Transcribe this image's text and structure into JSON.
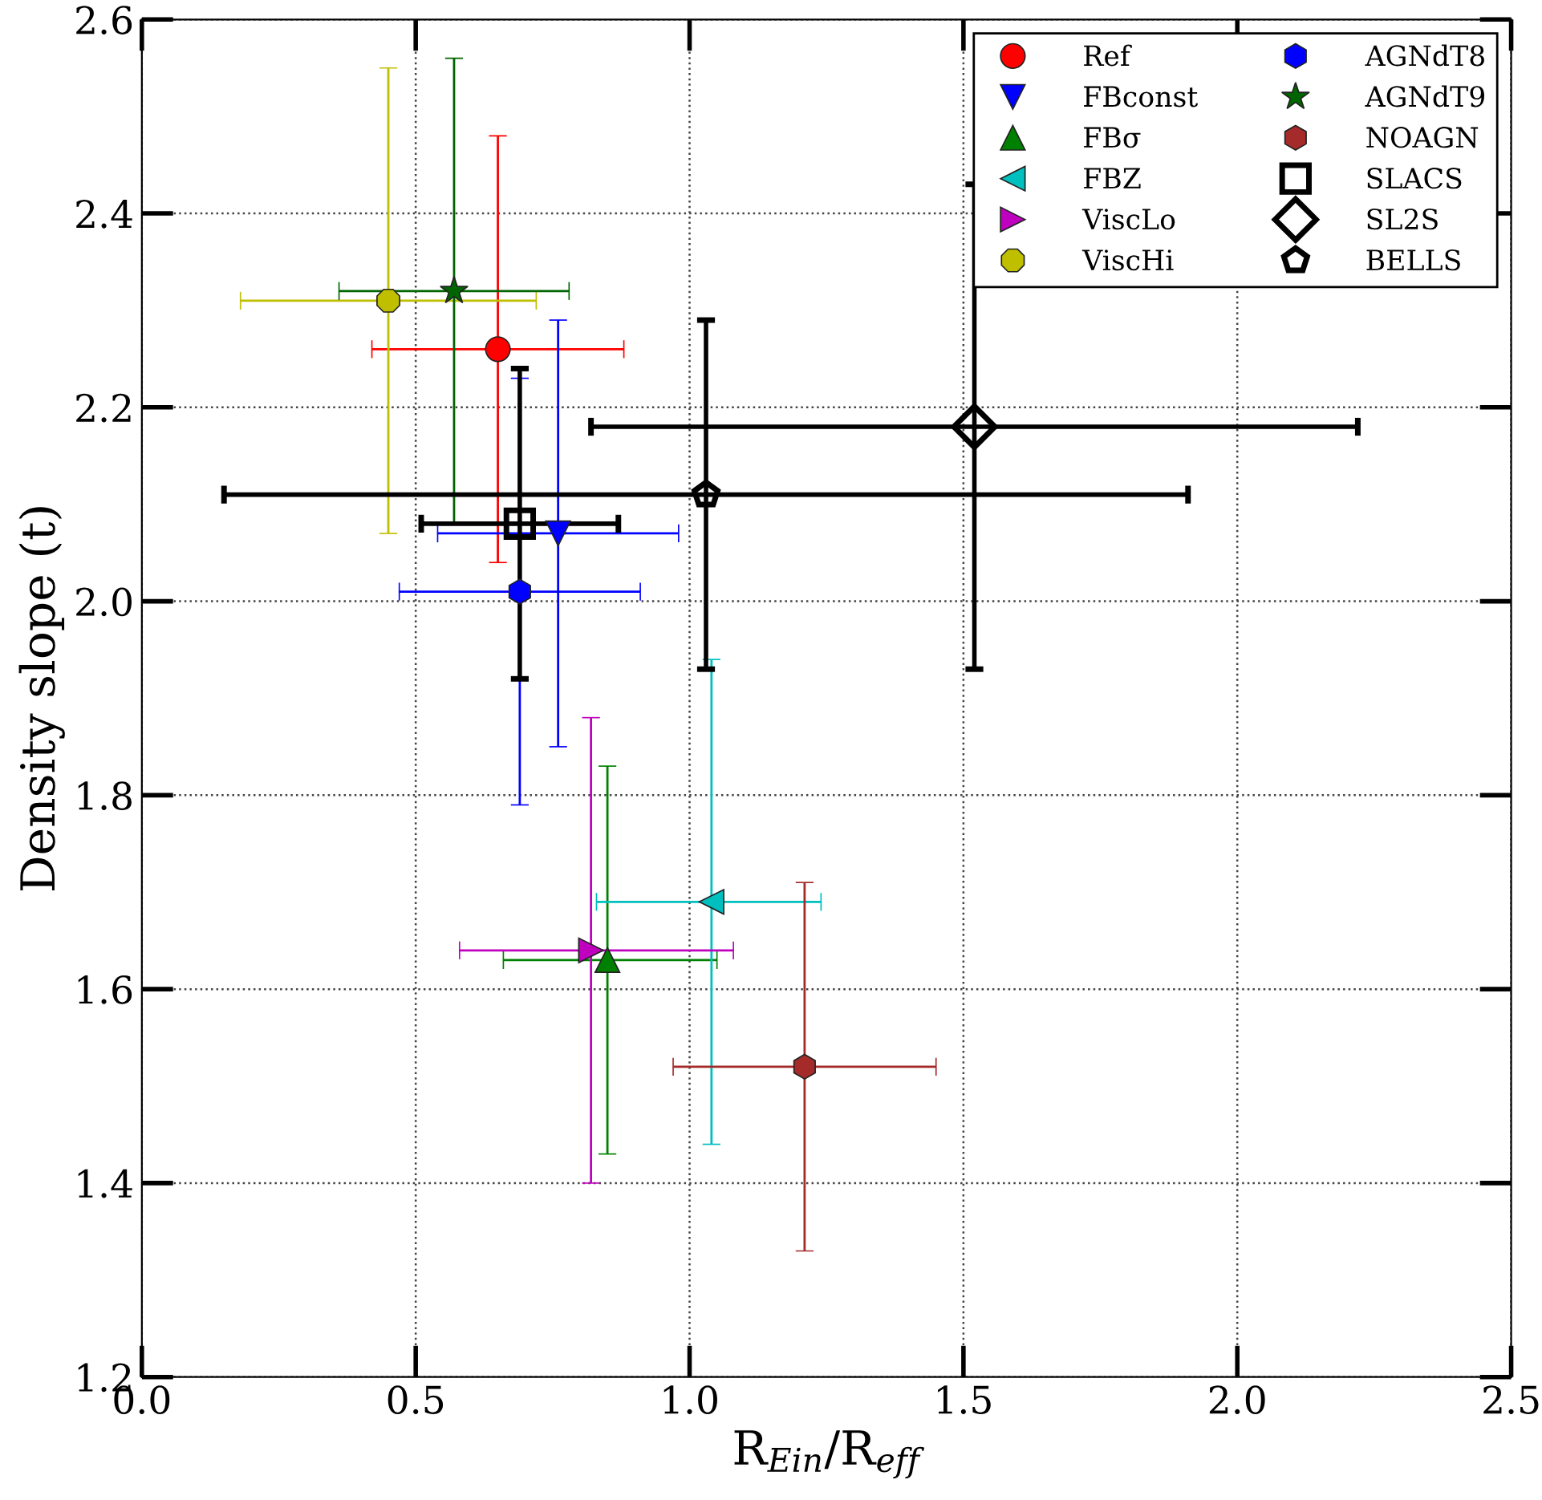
{
  "chart_data": {
    "type": "scatter",
    "xlabel": "R$_{Ein}$/R$_{eff}$",
    "ylabel": "Density slope (t)",
    "xlim": [
      0.0,
      2.5
    ],
    "ylim": [
      1.2,
      2.6
    ],
    "xticks": [
      {
        "value": 0,
        "label": "0.0"
      },
      0.5,
      {
        "value": 1,
        "label": "1.0"
      },
      1.5,
      {
        "value": 2,
        "label": "2.0"
      },
      2.5
    ],
    "yticks": [
      1.2,
      1.4,
      1.6,
      1.8,
      {
        "value": 2,
        "label": "2.0"
      },
      2.2,
      2.4,
      2.6
    ],
    "grid": true,
    "legend": "top right",
    "series": [
      {
        "name": "Ref",
        "color": "#ff0000",
        "marker": "circle",
        "x": [
          0.65
        ],
        "values": [
          2.26
        ],
        "xerrors": [
          [
            0.42,
            0.88
          ]
        ],
        "errors": [
          [
            2.04,
            2.48
          ]
        ]
      },
      {
        "name": "FBconst",
        "color": "#0000ff",
        "marker": "triangle_down",
        "x": [
          0.76
        ],
        "values": [
          2.07
        ],
        "xerrors": [
          [
            0.54,
            0.98
          ]
        ],
        "errors": [
          [
            1.85,
            2.29
          ]
        ]
      },
      {
        "name": "FBσ",
        "color": "#008000",
        "marker": "triangle_up",
        "x": [
          0.85
        ],
        "values": [
          1.63
        ],
        "xerrors": [
          [
            0.66,
            1.05
          ]
        ],
        "errors": [
          [
            1.43,
            1.83
          ]
        ]
      },
      {
        "name": "FBZ",
        "color": "#00bfbf",
        "marker": "triangle_left",
        "x": [
          1.04
        ],
        "values": [
          1.69
        ],
        "xerrors": [
          [
            0.83,
            1.24
          ]
        ],
        "errors": [
          [
            1.44,
            1.94
          ]
        ]
      },
      {
        "name": "ViscLo",
        "color": "#bf00bf",
        "marker": "triangle_right",
        "x": [
          0.82
        ],
        "values": [
          1.64
        ],
        "xerrors": [
          [
            0.58,
            1.08
          ]
        ],
        "errors": [
          [
            1.4,
            1.88
          ]
        ]
      },
      {
        "name": "ViscHi",
        "color": "#bfbf00",
        "x": [
          0.45
        ],
        "values": [
          2.31
        ],
        "xerrors": [
          [
            0.18,
            0.72
          ]
        ],
        "errors": [
          [
            2.07,
            2.55
          ]
        ]
      },
      {
        "name": "AGNdT8",
        "color": "#0000ff",
        "x": [
          0.69
        ],
        "values": [
          2.01
        ],
        "xerrors": [
          [
            0.47,
            0.91
          ]
        ],
        "errors": [
          [
            1.79,
            2.23
          ]
        ]
      },
      {
        "name": "AGNdT9",
        "color": "#006400",
        "marker": "star",
        "x": [
          0.57
        ],
        "values": [
          2.32
        ],
        "xerrors": [
          [
            0.36,
            0.78
          ]
        ],
        "errors": [
          [
            2.08,
            2.56
          ]
        ]
      },
      {
        "name": "NOAGN",
        "color": "#a52a2a",
        "x": [
          1.21
        ],
        "values": [
          1.52
        ],
        "xerrors": [
          [
            0.97,
            1.45
          ]
        ],
        "errors": [
          [
            1.33,
            1.71
          ]
        ]
      },
      {
        "name": "SLACS",
        "color": "#000000",
        "marker": "square",
        "x": [
          0.69
        ],
        "values": [
          2.08
        ],
        "xerrors": [
          [
            0.51,
            0.87
          ]
        ],
        "errors": [
          [
            1.92,
            2.24
          ]
        ]
      },
      {
        "name": "SL2S",
        "color": "#000000",
        "marker": "diamond",
        "x": [
          1.52
        ],
        "values": [
          2.18
        ],
        "xerrors": [
          [
            0.82,
            2.22
          ]
        ],
        "errors": [
          [
            1.93,
            2.43
          ]
        ]
      },
      {
        "name": "BELLS",
        "color": "#000000",
        "x": [
          1.03
        ],
        "values": [
          2.11
        ],
        "xerrors": [
          [
            0.15,
            1.91
          ]
        ],
        "errors": [
          [
            1.93,
            2.29
          ]
        ]
      }
    ]
  }
}
